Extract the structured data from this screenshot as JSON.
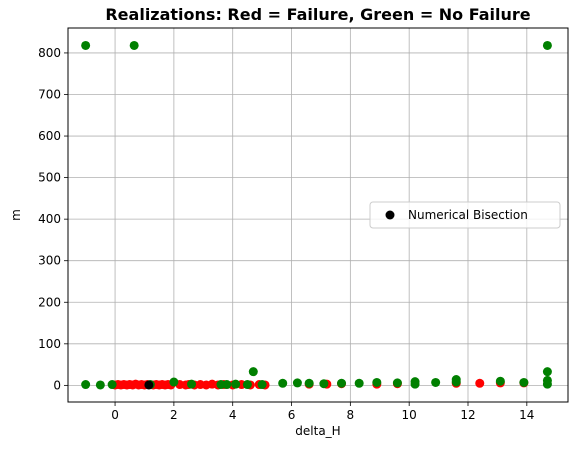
{
  "chart_data": {
    "type": "scatter",
    "title": "Realizations: Red = Failure, Green = No Failure",
    "xlabel": "delta_H",
    "ylabel": "m",
    "xlim": [
      -1.6,
      15.4
    ],
    "ylim": [
      -40,
      860
    ],
    "xticks": [
      0,
      2,
      4,
      6,
      8,
      10,
      12,
      14
    ],
    "yticks": [
      0,
      100,
      200,
      300,
      400,
      500,
      600,
      700,
      800
    ],
    "grid": true,
    "legend": {
      "position": "center-right",
      "entries": [
        {
          "label": "Numerical Bisection",
          "color": "#000000"
        }
      ]
    },
    "colors": {
      "failure": "#ff0000",
      "no_failure": "#008000",
      "bisection": "#000000"
    },
    "series": [
      {
        "status": "failure",
        "points": [
          [
            0.0,
            1
          ],
          [
            0.1,
            2
          ],
          [
            0.2,
            1
          ],
          [
            0.3,
            2
          ],
          [
            0.4,
            1
          ],
          [
            0.5,
            2
          ],
          [
            0.6,
            1
          ],
          [
            0.7,
            3
          ],
          [
            0.8,
            1
          ],
          [
            0.9,
            2
          ],
          [
            1.0,
            1
          ],
          [
            1.1,
            2
          ],
          [
            1.3,
            1
          ],
          [
            1.4,
            2
          ],
          [
            1.5,
            1
          ],
          [
            1.6,
            2
          ],
          [
            1.7,
            1
          ],
          [
            1.8,
            2
          ],
          [
            1.9,
            1
          ],
          [
            2.2,
            2
          ],
          [
            2.4,
            1
          ],
          [
            2.5,
            2
          ],
          [
            2.7,
            1
          ],
          [
            2.9,
            2
          ],
          [
            3.1,
            1
          ],
          [
            3.3,
            3
          ],
          [
            3.5,
            1
          ],
          [
            3.7,
            2
          ],
          [
            4.0,
            1
          ],
          [
            4.3,
            2
          ],
          [
            4.6,
            1
          ],
          [
            4.9,
            2
          ],
          [
            5.1,
            1
          ],
          [
            6.6,
            3
          ],
          [
            7.2,
            3
          ],
          [
            7.7,
            4
          ],
          [
            8.9,
            3
          ],
          [
            9.6,
            4
          ],
          [
            11.6,
            5
          ],
          [
            12.4,
            5
          ],
          [
            13.1,
            6
          ],
          [
            13.9,
            6
          ]
        ]
      },
      {
        "status": "no_failure",
        "points": [
          [
            -1.0,
            818
          ],
          [
            0.65,
            818
          ],
          [
            14.7,
            818
          ],
          [
            4.7,
            33
          ],
          [
            14.7,
            33
          ],
          [
            14.7,
            12
          ],
          [
            14.7,
            3
          ],
          [
            -1.0,
            2
          ],
          [
            -0.5,
            1
          ],
          [
            -0.1,
            2
          ],
          [
            1.2,
            2
          ],
          [
            2.0,
            8
          ],
          [
            2.6,
            3
          ],
          [
            3.6,
            2
          ],
          [
            3.8,
            2
          ],
          [
            4.1,
            3
          ],
          [
            4.5,
            2
          ],
          [
            5.0,
            2
          ],
          [
            5.7,
            5
          ],
          [
            6.2,
            6
          ],
          [
            6.6,
            5
          ],
          [
            7.1,
            4
          ],
          [
            7.7,
            5
          ],
          [
            8.3,
            5
          ],
          [
            8.9,
            7
          ],
          [
            9.6,
            6
          ],
          [
            10.2,
            9
          ],
          [
            10.2,
            3
          ],
          [
            10.9,
            7
          ],
          [
            11.6,
            14
          ],
          [
            11.6,
            8
          ],
          [
            13.1,
            10
          ],
          [
            13.9,
            7
          ]
        ]
      },
      {
        "status": "bisection",
        "points": [
          [
            1.15,
            1
          ]
        ]
      }
    ]
  }
}
